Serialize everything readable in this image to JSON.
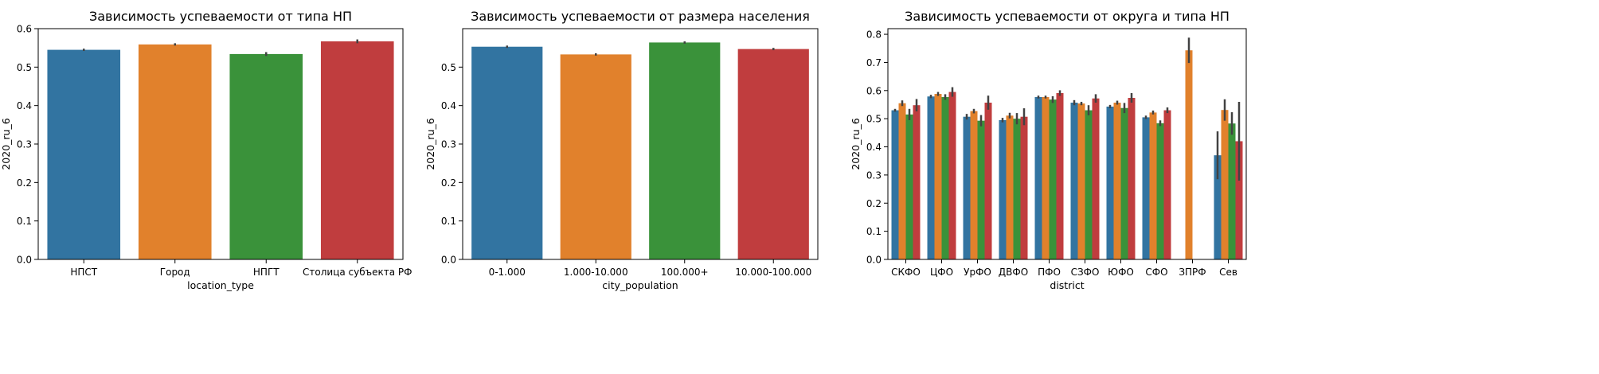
{
  "colors": [
    "#3274a1",
    "#e1812c",
    "#3a923a",
    "#c03d3e"
  ],
  "chart_data": [
    {
      "type": "bar",
      "title": "Зависимость успеваемости от типа НП",
      "xlabel": "location_type",
      "ylabel": "2020_ru_6",
      "ylim": [
        0,
        0.6
      ],
      "yticks": [
        "0.0",
        "0.1",
        "0.2",
        "0.3",
        "0.4",
        "0.5",
        "0.6"
      ],
      "categories": [
        "НПСТ",
        "Город",
        "НПГТ",
        "Столица субъекта РФ"
      ],
      "values": [
        0.545,
        0.559,
        0.534,
        0.567
      ],
      "errors": [
        0.003,
        0.003,
        0.005,
        0.005
      ],
      "grid": false,
      "legend": "none"
    },
    {
      "type": "bar",
      "title": "Зависимость успеваемости от размера населения",
      "xlabel": "city_population",
      "ylabel": "2020_ru_6",
      "ylim": [
        0,
        0.6
      ],
      "yticks": [
        "0.0",
        "0.1",
        "0.2",
        "0.3",
        "0.4",
        "0.5"
      ],
      "categories": [
        "0-1.000",
        "1.000-10.000",
        "100.000+",
        "10.000-100.000"
      ],
      "values": [
        0.553,
        0.533,
        0.564,
        0.547
      ],
      "errors": [
        0.003,
        0.003,
        0.003,
        0.003
      ],
      "grid": false,
      "legend": "none"
    },
    {
      "type": "bar",
      "title": "Зависимость успеваемости от округа и типа НП",
      "xlabel": "district",
      "ylabel": "2020_ru_6",
      "ylim": [
        0,
        0.82
      ],
      "yticks": [
        "0.0",
        "0.1",
        "0.2",
        "0.3",
        "0.4",
        "0.5",
        "0.6",
        "0.7",
        "0.8"
      ],
      "categories": [
        "СКФО",
        "ЦФО",
        "УрФО",
        "ДВФО",
        "ПФО",
        "СЗФО",
        "ЮФО",
        "СФО",
        "ЗПРФ",
        "Сев"
      ],
      "series": [
        {
          "values": [
            0.53,
            0.579,
            0.507,
            0.495,
            0.577,
            0.557,
            0.543,
            0.505,
            null,
            0.37
          ],
          "errors": [
            0.005,
            0.006,
            0.01,
            0.008,
            0.005,
            0.009,
            0.006,
            0.006,
            null,
            0.085
          ]
        },
        {
          "values": [
            0.555,
            0.588,
            0.527,
            0.511,
            0.577,
            0.554,
            0.557,
            0.522,
            0.743,
            0.531
          ],
          "errors": [
            0.01,
            0.007,
            0.008,
            0.01,
            0.005,
            0.006,
            0.007,
            0.007,
            0.045,
            0.038
          ]
        },
        {
          "values": [
            0.515,
            0.577,
            0.493,
            0.5,
            0.568,
            0.53,
            0.538,
            0.484,
            null,
            0.483
          ],
          "errors": [
            0.02,
            0.01,
            0.02,
            0.02,
            0.012,
            0.018,
            0.018,
            0.01,
            null,
            0.04
          ]
        },
        {
          "values": [
            0.548,
            0.595,
            0.557,
            0.507,
            0.591,
            0.572,
            0.574,
            0.53,
            null,
            0.42
          ],
          "errors": [
            0.022,
            0.017,
            0.025,
            0.03,
            0.01,
            0.015,
            0.017,
            0.01,
            null,
            0.14
          ]
        }
      ],
      "grid": false,
      "legend": "none"
    }
  ]
}
